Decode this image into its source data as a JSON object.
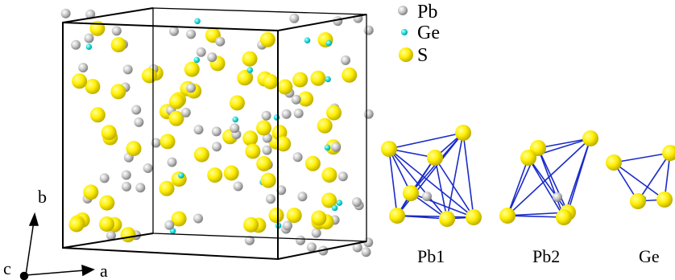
{
  "legend": {
    "items": [
      "Pb",
      "Ge",
      "S"
    ]
  },
  "axes": {
    "a": "a",
    "b": "b",
    "c": "c"
  },
  "polyhedra": {
    "labels": [
      "Pb1",
      "Pb2",
      "Ge"
    ]
  }
}
